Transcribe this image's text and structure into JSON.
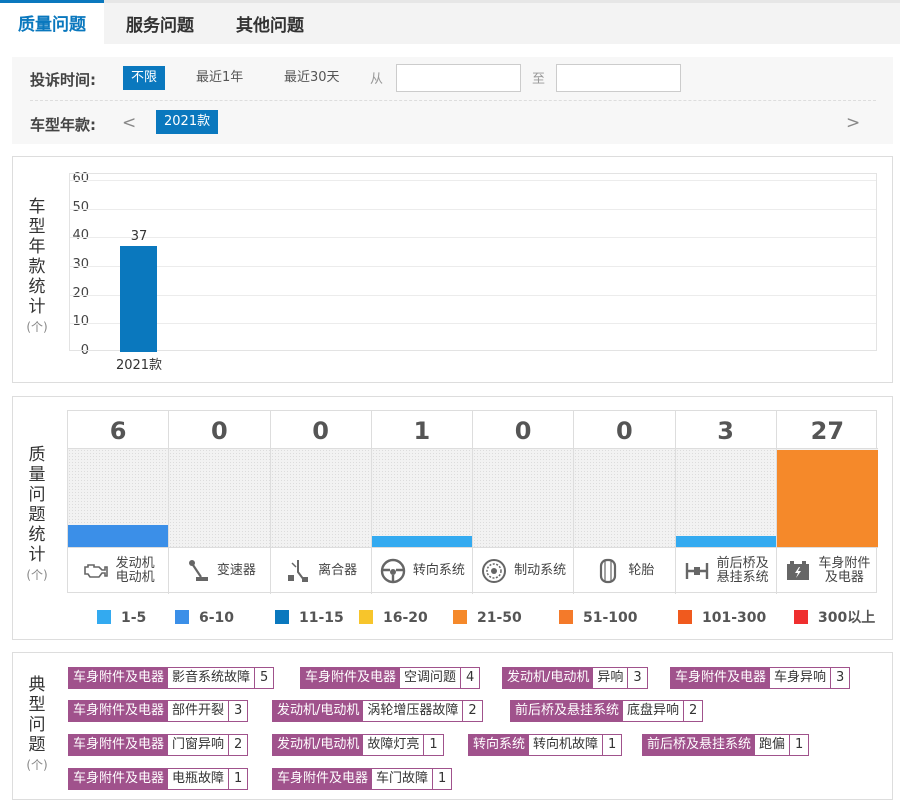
{
  "tabs": [
    {
      "label": "质量问题",
      "active": true
    },
    {
      "label": "服务问题",
      "active": false
    },
    {
      "label": "其他问题",
      "active": false
    }
  ],
  "filters": {
    "time_label": "投诉时间:",
    "time_options": [
      "不限",
      "最近1年",
      "最近30天"
    ],
    "time_selected": "不限",
    "from_label": "从",
    "to_label": "至",
    "from_value": "",
    "to_value": "",
    "year_label": "车型年款:",
    "prev_arrow": "<",
    "next_arrow": ">",
    "year_selected": "2021款"
  },
  "year_chart": {
    "label": "车型年款统计",
    "unit": "(个)",
    "chart_data": {
      "type": "bar",
      "categories": [
        "2021款"
      ],
      "values": [
        37
      ],
      "ylim": [
        0,
        60
      ],
      "yticks": [
        0,
        10,
        20,
        30,
        40,
        50,
        60
      ],
      "color": "#0a78be",
      "grid": true
    }
  },
  "quality": {
    "label": "质量问题统计",
    "unit": "(个)",
    "max": 60,
    "items": [
      {
        "name": "发动机\n电动机",
        "count": "6",
        "value": 6,
        "icon": "engine-icon",
        "color": "#3b8fe8"
      },
      {
        "name": "变速器",
        "count": "0",
        "value": 0,
        "icon": "gear-shift-icon",
        "color": "#33aaf0"
      },
      {
        "name": "离合器",
        "count": "0",
        "value": 0,
        "icon": "clutch-pedal-icon",
        "color": "#33aaf0"
      },
      {
        "name": "转向系统",
        "count": "1",
        "value": 1,
        "icon": "steering-wheel-icon",
        "color": "#33aaf0"
      },
      {
        "name": "制动系统",
        "count": "0",
        "value": 0,
        "icon": "brake-disc-icon",
        "color": "#33aaf0"
      },
      {
        "name": "轮胎",
        "count": "0",
        "value": 0,
        "icon": "tire-icon",
        "color": "#33aaf0"
      },
      {
        "name": "前后桥及\n悬挂系统",
        "count": "3",
        "value": 3,
        "icon": "suspension-icon",
        "color": "#33aaf0"
      },
      {
        "name": "车身附件\n及电器",
        "count": "27",
        "value": 27,
        "icon": "battery-icon",
        "color": "#f5892a"
      }
    ],
    "legend": [
      {
        "label": "1-5",
        "color": "#33aaf0"
      },
      {
        "label": "6-10",
        "color": "#3b8fe8"
      },
      {
        "label": "11-15",
        "color": "#0a78be"
      },
      {
        "label": "16-20",
        "color": "#f7c52b"
      },
      {
        "label": "21-50",
        "color": "#f5892a"
      },
      {
        "label": "51-100",
        "color": "#f47a2a"
      },
      {
        "label": "101-300",
        "color": "#f05a1e"
      },
      {
        "label": "300以上",
        "color": "#ef2f2f"
      }
    ]
  },
  "typical": {
    "label": "典型问题",
    "unit": "(个)",
    "accent": "#a0528c",
    "rows": [
      [
        {
          "cat": "车身附件及电器",
          "issue": "影音系统故障",
          "count": "5"
        },
        {
          "cat": "车身附件及电器",
          "issue": "空调问题",
          "count": "4"
        },
        {
          "cat": "发动机/电动机",
          "issue": "异响",
          "count": "3"
        },
        {
          "cat": "车身附件及电器",
          "issue": "车身异响",
          "count": "3"
        }
      ],
      [
        {
          "cat": "车身附件及电器",
          "issue": "部件开裂",
          "count": "3"
        },
        {
          "cat": "发动机/电动机",
          "issue": "涡轮增压器故障",
          "count": "2"
        },
        {
          "cat": "前后桥及悬挂系统",
          "issue": "底盘异响",
          "count": "2"
        }
      ],
      [
        {
          "cat": "车身附件及电器",
          "issue": "门窗异响",
          "count": "2"
        },
        {
          "cat": "发动机/电动机",
          "issue": "故障灯亮",
          "count": "1"
        },
        {
          "cat": "转向系统",
          "issue": "转向机故障",
          "count": "1"
        },
        {
          "cat": "前后桥及悬挂系统",
          "issue": "跑偏",
          "count": "1"
        }
      ],
      [
        {
          "cat": "车身附件及电器",
          "issue": "电瓶故障",
          "count": "1"
        },
        {
          "cat": "车身附件及电器",
          "issue": "车门故障",
          "count": "1"
        }
      ]
    ]
  }
}
